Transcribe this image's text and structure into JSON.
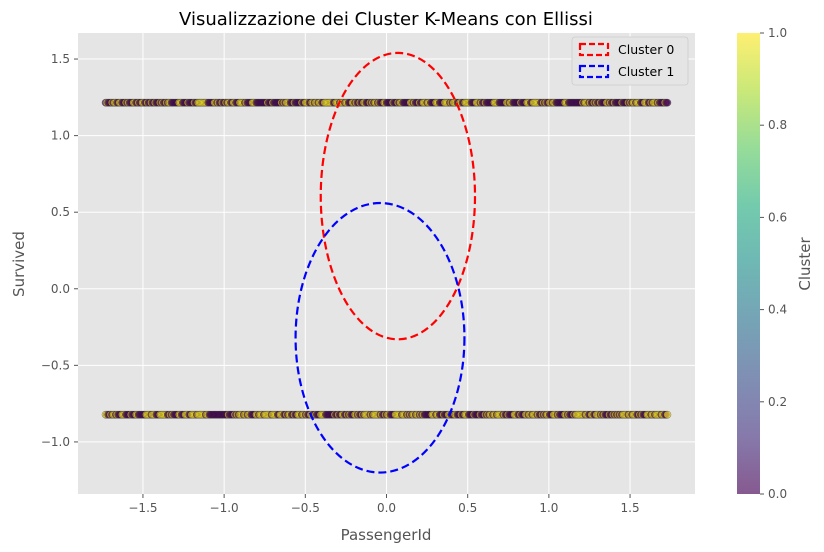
{
  "chart_data": {
    "type": "scatter",
    "title": "Visualizzazione dei Cluster K-Means con Ellissi",
    "xlabel": "PassengerId",
    "ylabel": "Survived",
    "xlim": [
      -1.9,
      1.9
    ],
    "ylim": [
      -1.34,
      1.67
    ],
    "x_ticks": [
      -1.5,
      -1.0,
      -0.5,
      0.0,
      0.5,
      1.0,
      1.5
    ],
    "x_tick_labels": [
      "−1.5",
      "−1.0",
      "−0.5",
      "0.0",
      "0.5",
      "1.0",
      "1.5"
    ],
    "y_ticks": [
      -1.0,
      -0.5,
      0.0,
      0.5,
      1.0,
      1.5
    ],
    "y_tick_labels": [
      "−1.0",
      "−0.5",
      "0.0",
      "0.5",
      "1.0",
      "1.5"
    ],
    "grid": true,
    "point_rows": [
      {
        "y": 1.2151,
        "x_min": -1.73,
        "x_max": 1.73
      },
      {
        "y": -0.8221,
        "x_min": -1.73,
        "x_max": 1.73
      }
    ],
    "ellipses": [
      {
        "name": "Cluster 0",
        "color": "#ff0000",
        "center": [
          0.07,
          0.605
        ],
        "width": 0.95,
        "height": 1.87
      },
      {
        "name": "Cluster 1",
        "color": "#0000ff",
        "center": [
          -0.04,
          -0.32
        ],
        "width": 1.04,
        "height": 1.76
      }
    ],
    "legend": {
      "position": "top-right",
      "entries": [
        "Cluster 0",
        "Cluster 1"
      ]
    },
    "colorbar": {
      "label": "Cluster",
      "colormap": "viridis",
      "range": [
        0.0,
        1.0
      ],
      "ticks": [
        0.0,
        0.2,
        0.4,
        0.6,
        0.8,
        1.0
      ],
      "tick_labels": [
        "0.0",
        "0.2",
        "0.4",
        "0.6",
        "0.8",
        "1.0"
      ]
    },
    "colors": {
      "cluster_0": "#440154",
      "cluster_1": "#fde725",
      "background": "#e5e5e5",
      "grid": "#ffffff"
    }
  }
}
